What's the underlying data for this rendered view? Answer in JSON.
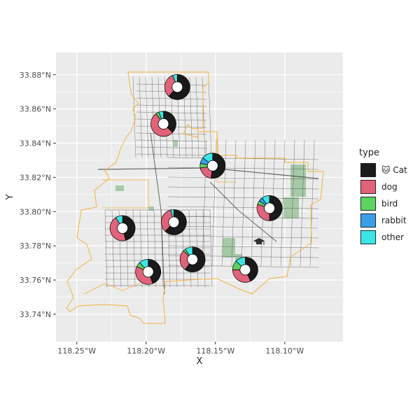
{
  "chart_data": {
    "type": "map",
    "xlabel": "X",
    "ylabel": "Y",
    "xlim": [
      -118.265,
      -118.058
    ],
    "ylim": [
      33.724,
      33.893
    ],
    "x_ticks": [
      {
        "value": -118.25,
        "label": "118.25°W"
      },
      {
        "value": -118.2,
        "label": "118.20°W"
      },
      {
        "value": -118.15,
        "label": "118.15°W"
      },
      {
        "value": -118.1,
        "label": "118.10°W"
      }
    ],
    "y_ticks": [
      {
        "value": 33.74,
        "label": "33.74°N"
      },
      {
        "value": 33.76,
        "label": "33.76°N"
      },
      {
        "value": 33.78,
        "label": "33.78°N"
      },
      {
        "value": 33.8,
        "label": "33.80°N"
      },
      {
        "value": 33.82,
        "label": "33.82°N"
      },
      {
        "value": 33.84,
        "label": "33.84°N"
      },
      {
        "value": 33.86,
        "label": "33.86°N"
      },
      {
        "value": 33.88,
        "label": "33.88°N"
      }
    ],
    "grid": true,
    "legend": {
      "title": "type",
      "position": "right",
      "entries": [
        {
          "key": "cat",
          "label": "🐱 Cat",
          "color": "#1a1a1a"
        },
        {
          "key": "dog",
          "label": "dog",
          "color": "#e0637a"
        },
        {
          "key": "bird",
          "label": "bird",
          "color": "#5fd35f"
        },
        {
          "key": "rabbit",
          "label": "rabbit",
          "color": "#3a9ee8"
        },
        {
          "key": "other",
          "label": "other",
          "color": "#3de6e6"
        }
      ]
    },
    "donuts": [
      {
        "lon": -118.1775,
        "lat": 33.8728,
        "shares": {
          "cat": 0.62,
          "dog": 0.32,
          "bird": 0.0,
          "rabbit": 0.0,
          "other": 0.06
        }
      },
      {
        "lon": -118.1875,
        "lat": 33.8513,
        "shares": {
          "cat": 0.37,
          "dog": 0.53,
          "bird": 0.04,
          "rabbit": 0.0,
          "other": 0.06
        }
      },
      {
        "lon": -118.152,
        "lat": 33.8268,
        "shares": {
          "cat": 0.52,
          "dog": 0.2,
          "bird": 0.06,
          "rabbit": 0.08,
          "other": 0.14
        }
      },
      {
        "lon": -118.111,
        "lat": 33.802,
        "shares": {
          "cat": 0.5,
          "dog": 0.3,
          "bird": 0.05,
          "rabbit": 0.05,
          "other": 0.1
        }
      },
      {
        "lon": -118.18,
        "lat": 33.7938,
        "shares": {
          "cat": 0.62,
          "dog": 0.34,
          "bird": 0.0,
          "rabbit": 0.0,
          "other": 0.04
        }
      },
      {
        "lon": -118.217,
        "lat": 33.7903,
        "shares": {
          "cat": 0.46,
          "dog": 0.45,
          "bird": 0.0,
          "rabbit": 0.0,
          "other": 0.09
        }
      },
      {
        "lon": -118.1665,
        "lat": 33.772,
        "shares": {
          "cat": 0.6,
          "dog": 0.27,
          "bird": 0.03,
          "rabbit": 0.0,
          "other": 0.1
        }
      },
      {
        "lon": -118.1285,
        "lat": 33.766,
        "shares": {
          "cat": 0.43,
          "dog": 0.32,
          "bird": 0.12,
          "rabbit": 0.0,
          "other": 0.13
        }
      },
      {
        "lon": -118.1985,
        "lat": 33.7648,
        "shares": {
          "cat": 0.44,
          "dog": 0.38,
          "bird": 0.06,
          "rabbit": 0.0,
          "other": 0.12
        }
      }
    ],
    "colors": {
      "panel": "#ebebeb",
      "grid": "#ffffff",
      "boundary": "#f0b43c",
      "streets": "#3a3a3a",
      "parks": "#9ac39a"
    },
    "icons": [
      "graduation-cap-icon"
    ]
  }
}
